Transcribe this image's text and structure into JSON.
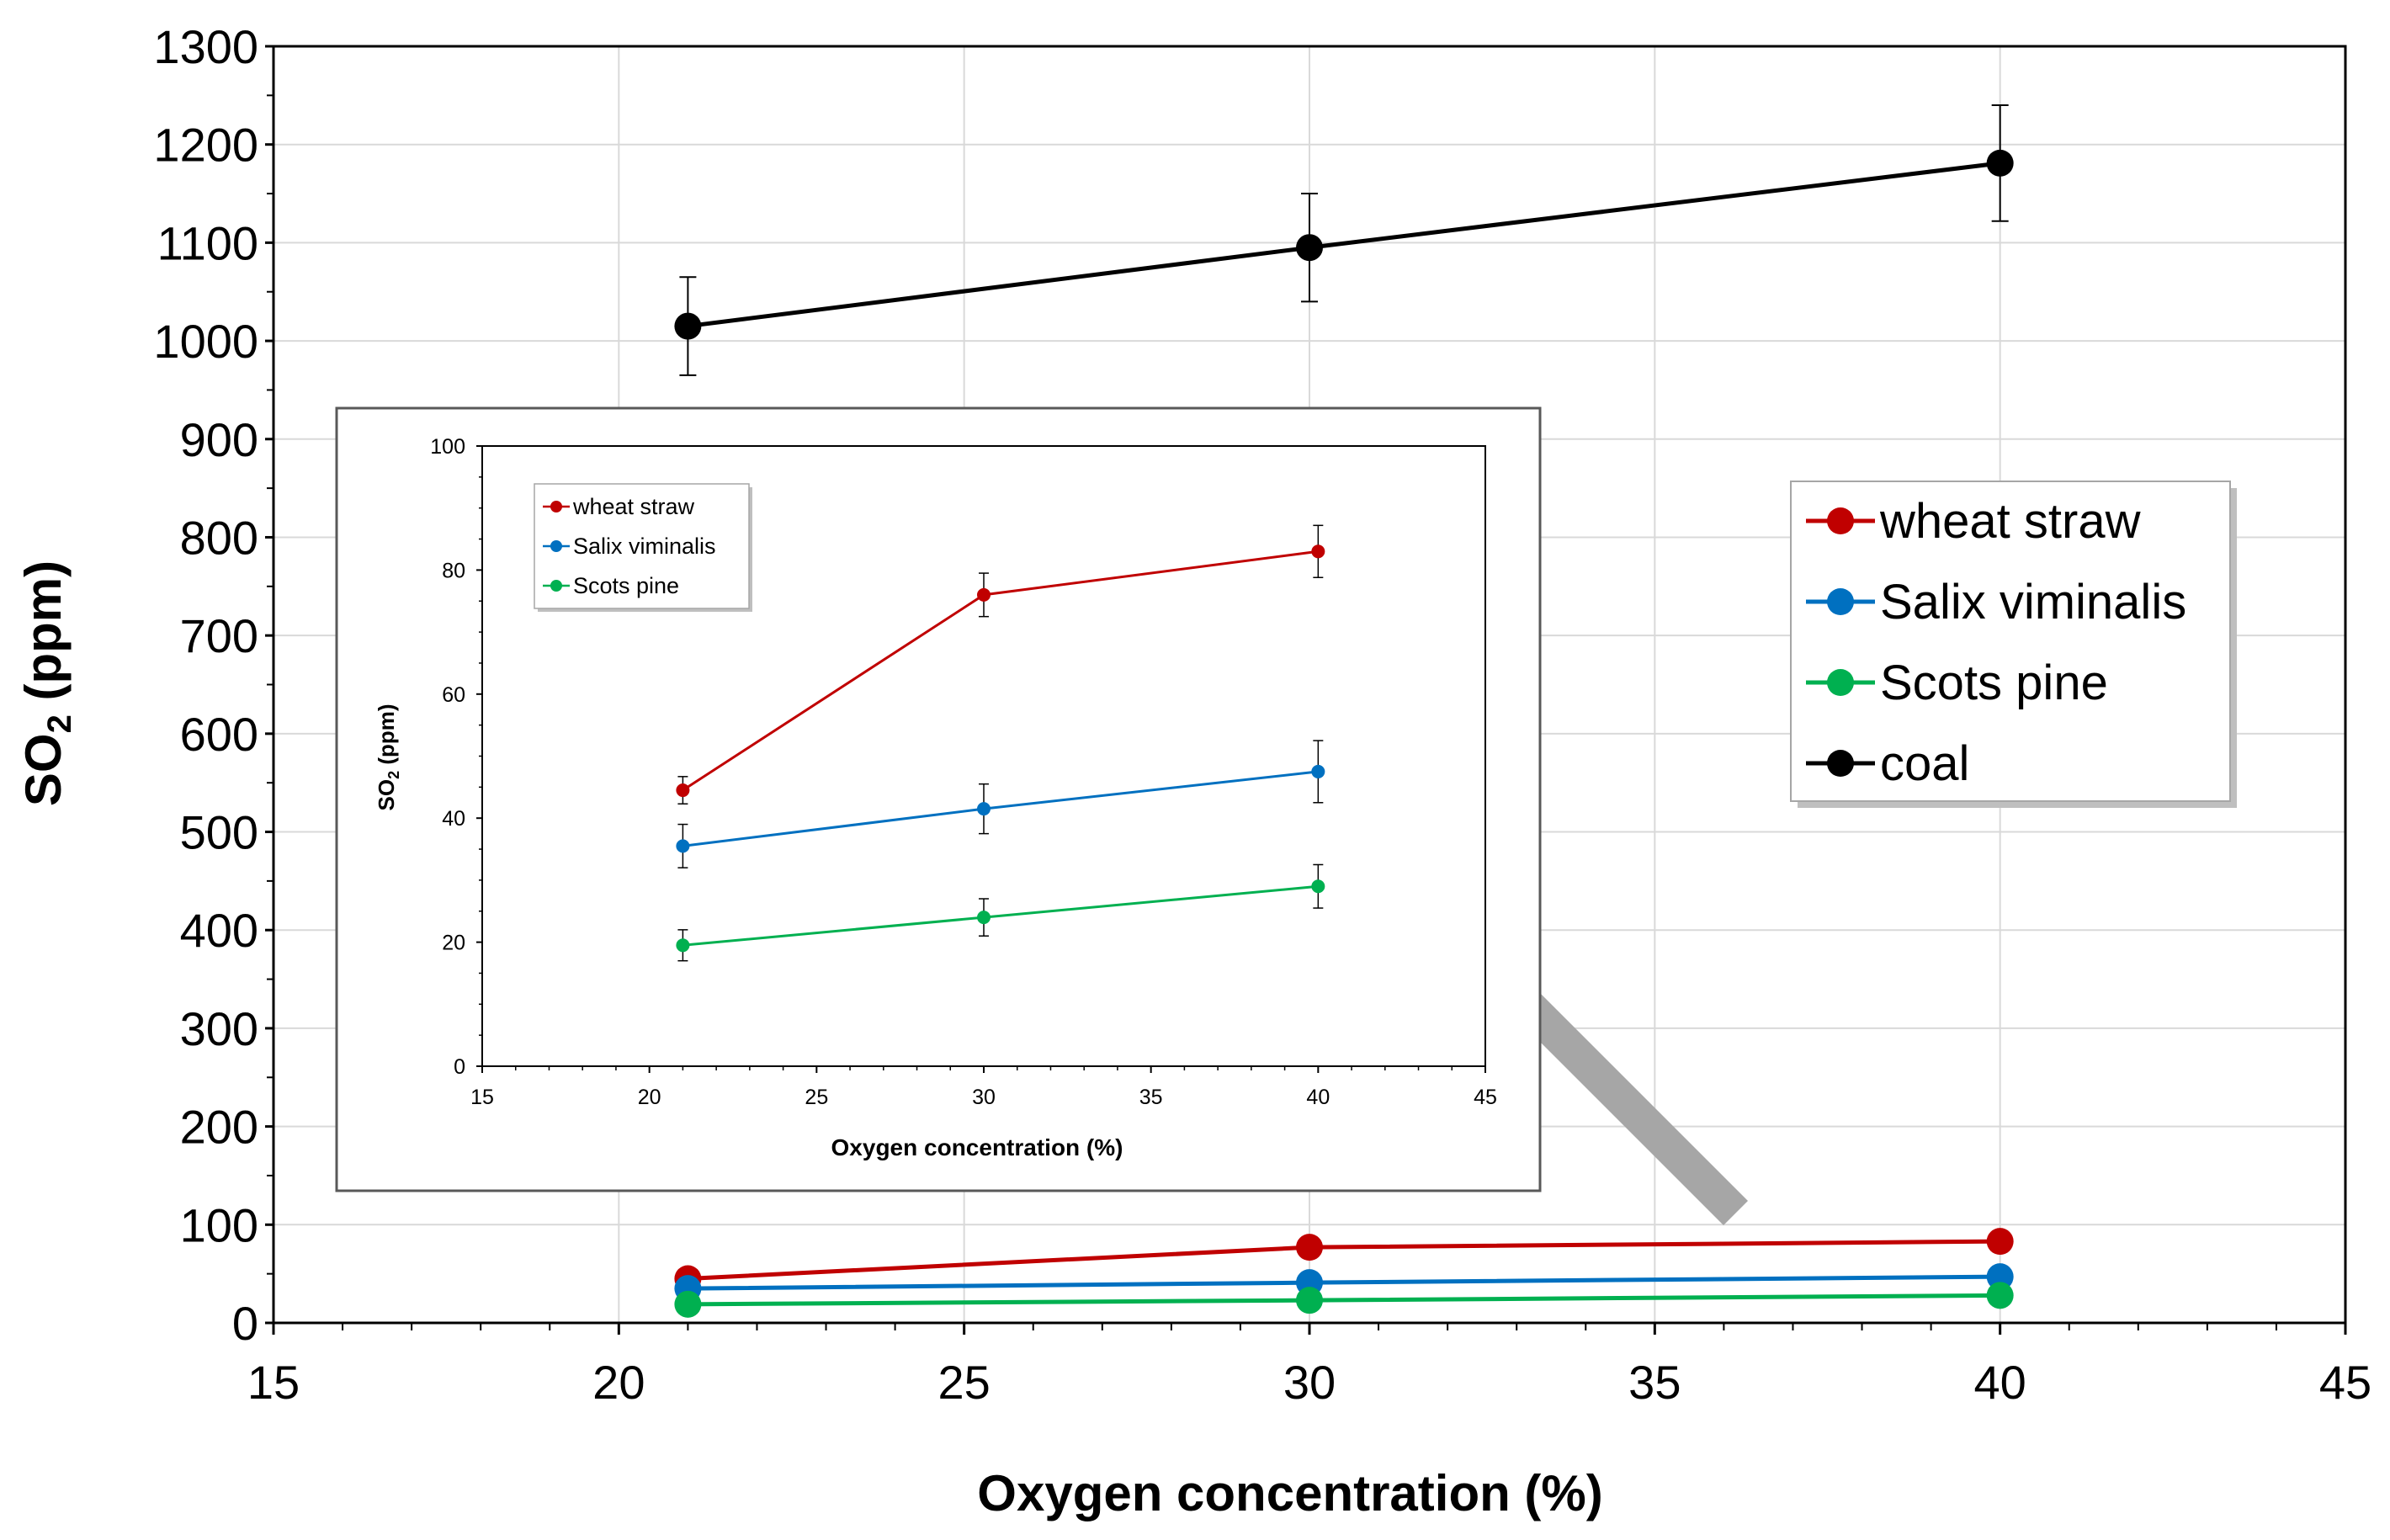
{
  "chart_data": [
    {
      "type": "line",
      "title": "",
      "xlabel": "Oxygen concentration (%)",
      "ylabel": "SO₂ (ppm)",
      "ylabel_base": "SO",
      "ylabel_sub": "2",
      "ylabel_unit": " (ppm)",
      "xlim": [
        15,
        45
      ],
      "ylim": [
        0,
        1300
      ],
      "xticks": [
        "15",
        "20",
        "25",
        "30",
        "35",
        "40",
        "45"
      ],
      "yticks": [
        "0",
        "100",
        "200",
        "300",
        "400",
        "500",
        "600",
        "700",
        "800",
        "900",
        "1000",
        "1100",
        "1200",
        "1300"
      ],
      "grid": true,
      "legend_position": "right",
      "x": [
        21,
        30,
        40
      ],
      "series": [
        {
          "name": "wheat straw",
          "color": "#c00000",
          "values": [
            45,
            77,
            83
          ],
          "errors": [
            0,
            0,
            0
          ]
        },
        {
          "name": "Salix viminalis",
          "color": "#0070c0",
          "values": [
            35,
            41,
            47
          ],
          "errors": [
            0,
            0,
            0
          ]
        },
        {
          "name": "Scots pine",
          "color": "#00b050",
          "values": [
            19,
            23,
            28
          ],
          "errors": [
            0,
            0,
            0
          ]
        },
        {
          "name": "coal",
          "color": "#000000",
          "values": [
            1015,
            1095,
            1181
          ],
          "errors": [
            50,
            55,
            59
          ]
        }
      ]
    },
    {
      "type": "line",
      "title": "",
      "xlabel": "Oxygen concentration (%)",
      "ylabel": "SO₂ (ppm)",
      "ylabel_base": "SO",
      "ylabel_sub": "2",
      "ylabel_unit": " (ppm)",
      "xlim": [
        15,
        45
      ],
      "ylim": [
        0,
        100
      ],
      "xticks": [
        "15",
        "20",
        "25",
        "30",
        "35",
        "40",
        "45"
      ],
      "yticks": [
        "0",
        "20",
        "40",
        "60",
        "80",
        "100"
      ],
      "grid": false,
      "legend_position": "top-left",
      "x": [
        21,
        30,
        40
      ],
      "series": [
        {
          "name": "wheat straw",
          "color": "#c00000",
          "values": [
            44.5,
            76,
            83
          ],
          "errors": [
            2.2,
            3.5,
            4.2
          ]
        },
        {
          "name": "Salix viminalis",
          "color": "#0070c0",
          "values": [
            35.5,
            41.5,
            47.5
          ],
          "errors": [
            3.5,
            4,
            5
          ]
        },
        {
          "name": "Scots pine",
          "color": "#00b050",
          "values": [
            19.5,
            24,
            29
          ],
          "errors": [
            2.5,
            3,
            3.5
          ]
        }
      ]
    }
  ]
}
